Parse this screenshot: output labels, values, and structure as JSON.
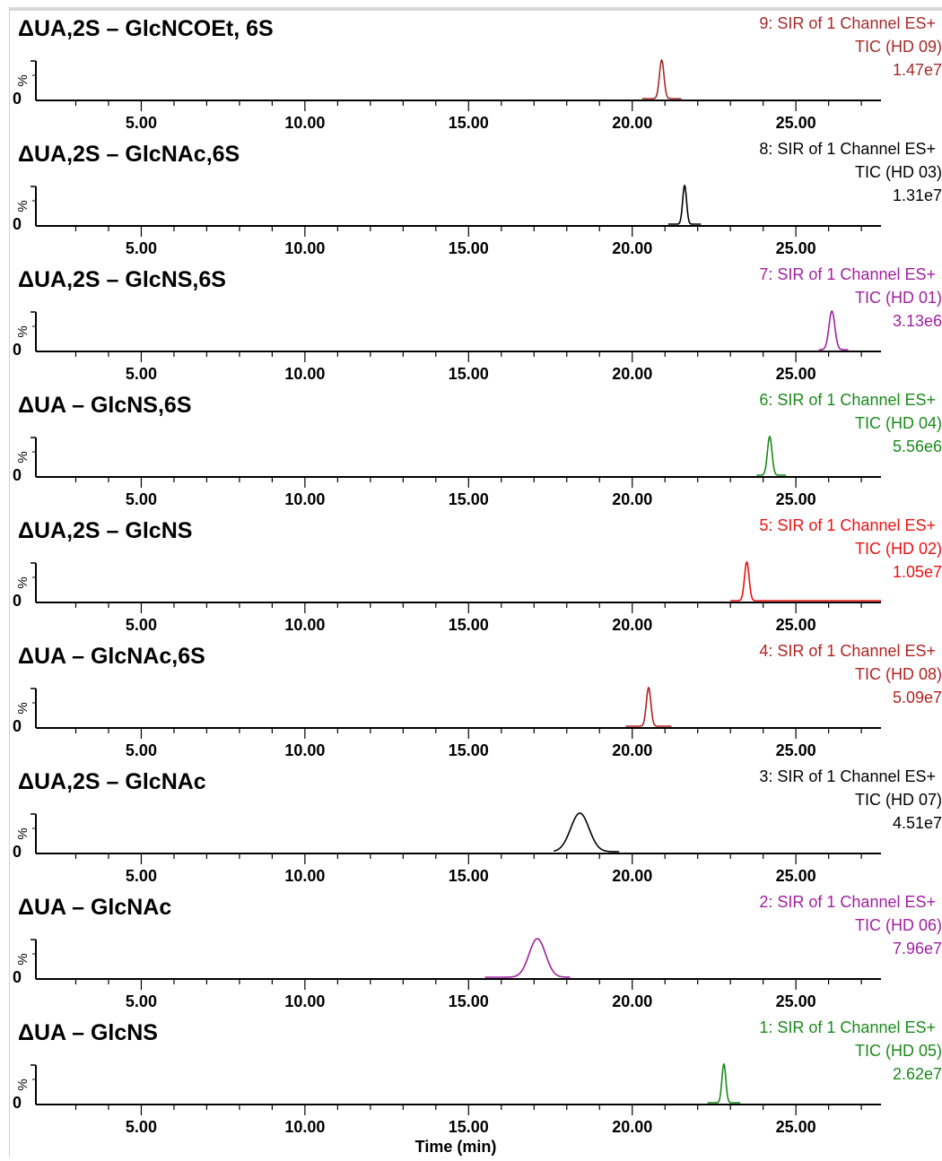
{
  "chart_data": {
    "type": "line",
    "xlabel": "Time (min)",
    "xlim": [
      2.0,
      27.6
    ],
    "xticks": [
      "5.00",
      "10.00",
      "15.00",
      "20.00",
      "25.00"
    ],
    "yaxis_label": "%",
    "ytick": "0",
    "panels": [
      {
        "title": "ΔUA,2S – GlcNCOEt, 6S",
        "channel": "9: SIR of 1 Channel ES+",
        "tic": "TIC (HD 09)",
        "intensity": "1.47e7",
        "color": "#a52a2a",
        "peak_rt": 20.9,
        "peak_width": 0.07,
        "base_start": 20.3,
        "base_end": 21.5
      },
      {
        "title": "ΔUA,2S – GlcNAc,6S",
        "channel": "8: SIR of 1 Channel ES+",
        "tic": "TIC (HD 03)",
        "intensity": "1.31e7",
        "color": "#000000",
        "peak_rt": 21.6,
        "peak_width": 0.06,
        "base_start": 21.1,
        "base_end": 22.1
      },
      {
        "title": "ΔUA,2S – GlcNS,6S",
        "channel": "7: SIR of 1 Channel ES+",
        "tic": "TIC (HD 01)",
        "intensity": "3.13e6",
        "color": "#a020a0",
        "peak_rt": 26.1,
        "peak_width": 0.09,
        "base_start": 25.7,
        "base_end": 26.6
      },
      {
        "title": "ΔUA – GlcNS,6S",
        "channel": "6: SIR of 1 Channel ES+",
        "tic": "TIC (HD 04)",
        "intensity": "5.56e6",
        "color": "#1a8a1a",
        "peak_rt": 24.2,
        "peak_width": 0.07,
        "base_start": 23.8,
        "base_end": 24.7
      },
      {
        "title": "ΔUA,2S – GlcNS",
        "channel": "5: SIR of 1 Channel ES+",
        "tic": "TIC (HD 02)",
        "intensity": "1.05e7",
        "color": "#ee1111",
        "peak_rt": 23.5,
        "peak_width": 0.07,
        "base_start": 23.0,
        "base_end": 27.6
      },
      {
        "title": "ΔUA – GlcNAc,6S",
        "channel": "4: SIR of 1 Channel ES+",
        "tic": "TIC (HD 08)",
        "intensity": "5.09e7",
        "color": "#b22222",
        "peak_rt": 20.5,
        "peak_width": 0.07,
        "base_start": 19.8,
        "base_end": 21.2
      },
      {
        "title": "ΔUA,2S – GlcNAc",
        "channel": "3: SIR of 1 Channel ES+",
        "tic": "TIC (HD 07)",
        "intensity": "4.51e7",
        "color": "#000000",
        "peak_rt": 18.4,
        "peak_width": 0.28,
        "base_start": 17.6,
        "base_end": 19.6
      },
      {
        "title": "ΔUA – GlcNAc",
        "channel": "2: SIR of 1 Channel ES+",
        "tic": "TIC (HD 06)",
        "intensity": "7.96e7",
        "color": "#a020a0",
        "peak_rt": 17.1,
        "peak_width": 0.25,
        "base_start": 15.5,
        "base_end": 18.1
      },
      {
        "title": "ΔUA – GlcNS",
        "channel": "1: SIR of 1 Channel ES+",
        "tic": "TIC (HD 05)",
        "intensity": "2.62e7",
        "color": "#1a8a1a",
        "peak_rt": 22.8,
        "peak_width": 0.06,
        "base_start": 22.3,
        "base_end": 23.3
      }
    ]
  }
}
